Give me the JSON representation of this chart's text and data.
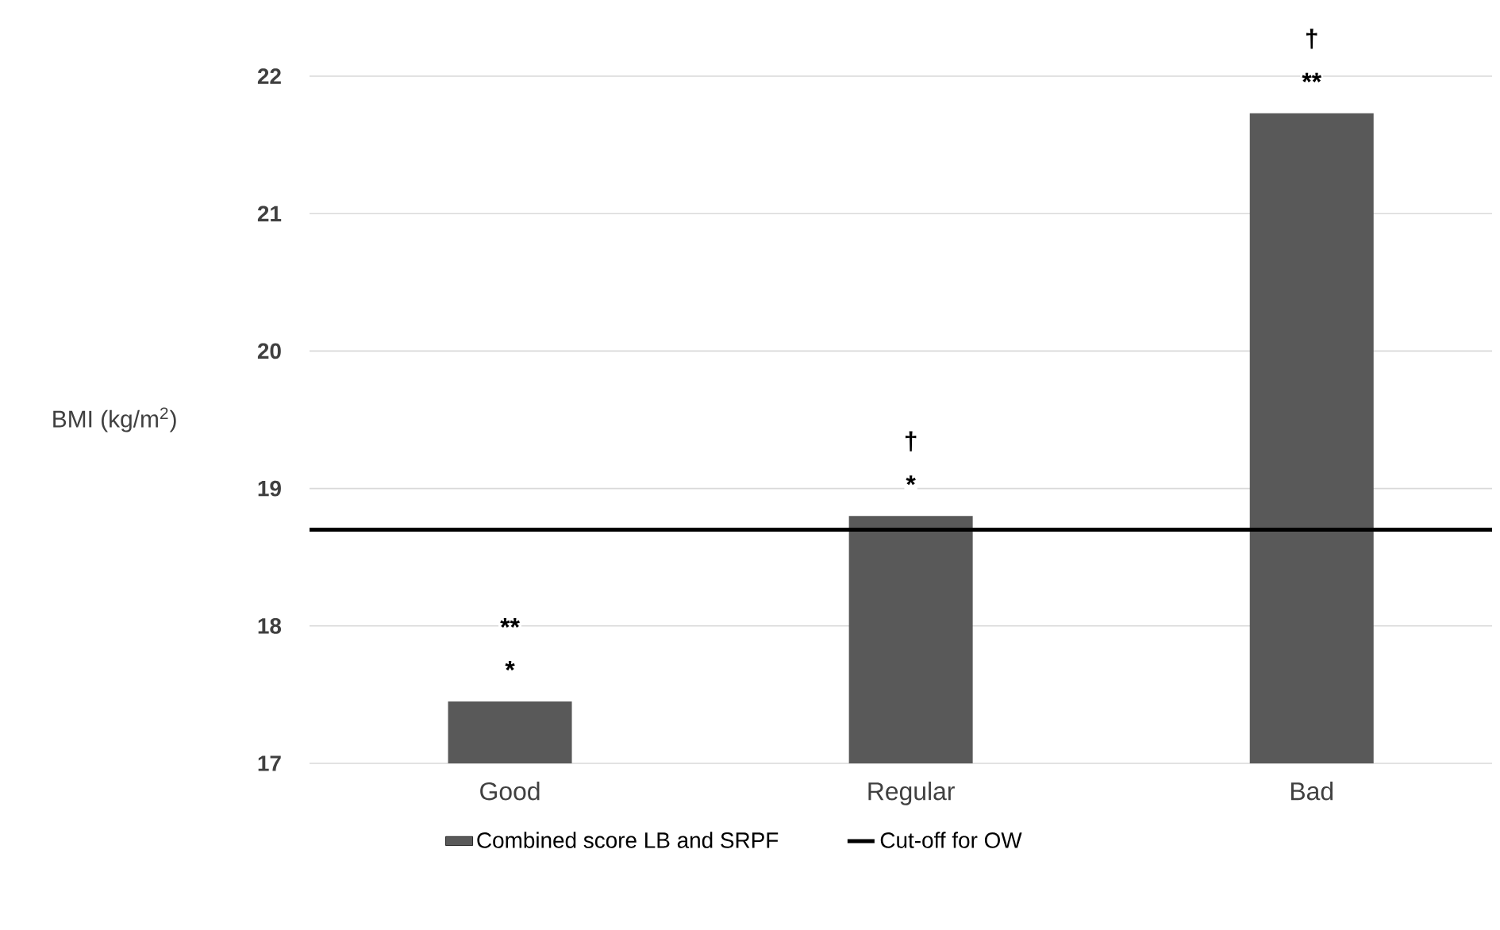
{
  "chart_data": {
    "type": "bar",
    "ylabel": "BMI (kg/m$^{2}$)",
    "categories": [
      "Good",
      "Regular",
      "Bad"
    ],
    "series": [
      {
        "name": "Combined score LB and SRPF",
        "color": "#595959",
        "values": [
          17.45,
          18.8,
          21.73
        ]
      }
    ],
    "ylim": [
      17,
      22
    ],
    "yticks": [
      17,
      18,
      19,
      20,
      21,
      22
    ],
    "grid": "y",
    "legend": "bottom",
    "ref_lines": [
      {
        "axis": "y",
        "value": 18.7,
        "label": "Cut-off for OW",
        "color": "#000000",
        "line_style": "solid"
      }
    ],
    "annotations": [
      "*",
      "**",
      "*",
      "†",
      "**",
      "†"
    ]
  }
}
